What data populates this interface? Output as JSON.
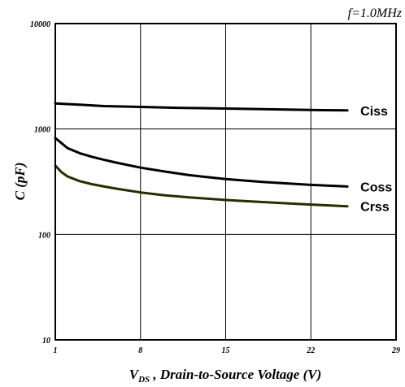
{
  "chart_data": {
    "type": "line",
    "annotation": "f=1.0MHz",
    "xlabel_main": "V",
    "xlabel_sub": "DS",
    "xlabel_rest": " , Drain-to-Source Voltage (V)",
    "ylabel": "C (pF)",
    "xlim": [
      1,
      29
    ],
    "ylim": [
      10,
      10000
    ],
    "yscale": "log",
    "grid": true,
    "xticks": [
      1,
      8,
      15,
      22,
      29
    ],
    "yticks": [
      10,
      100,
      1000,
      10000
    ],
    "series": [
      {
        "name": "Ciss",
        "color": "#000000",
        "x": [
          1,
          3,
          5,
          8,
          11,
          14,
          17,
          20,
          23,
          25
        ],
        "y": [
          1750,
          1700,
          1650,
          1620,
          1590,
          1570,
          1550,
          1530,
          1510,
          1500
        ]
      },
      {
        "name": "Coss",
        "color": "#000000",
        "x": [
          1,
          2,
          3,
          4,
          5,
          6,
          8,
          10,
          12,
          15,
          18,
          22,
          25
        ],
        "y": [
          820,
          660,
          590,
          545,
          510,
          480,
          430,
          395,
          365,
          335,
          315,
          295,
          285
        ]
      },
      {
        "name": "Crss",
        "color": "#2b2b00",
        "x": [
          1,
          1.5,
          2,
          3,
          4,
          5,
          6,
          8,
          10,
          12,
          15,
          18,
          22,
          25
        ],
        "y": [
          450,
          390,
          355,
          320,
          300,
          285,
          272,
          250,
          235,
          225,
          212,
          203,
          192,
          185
        ]
      }
    ]
  }
}
